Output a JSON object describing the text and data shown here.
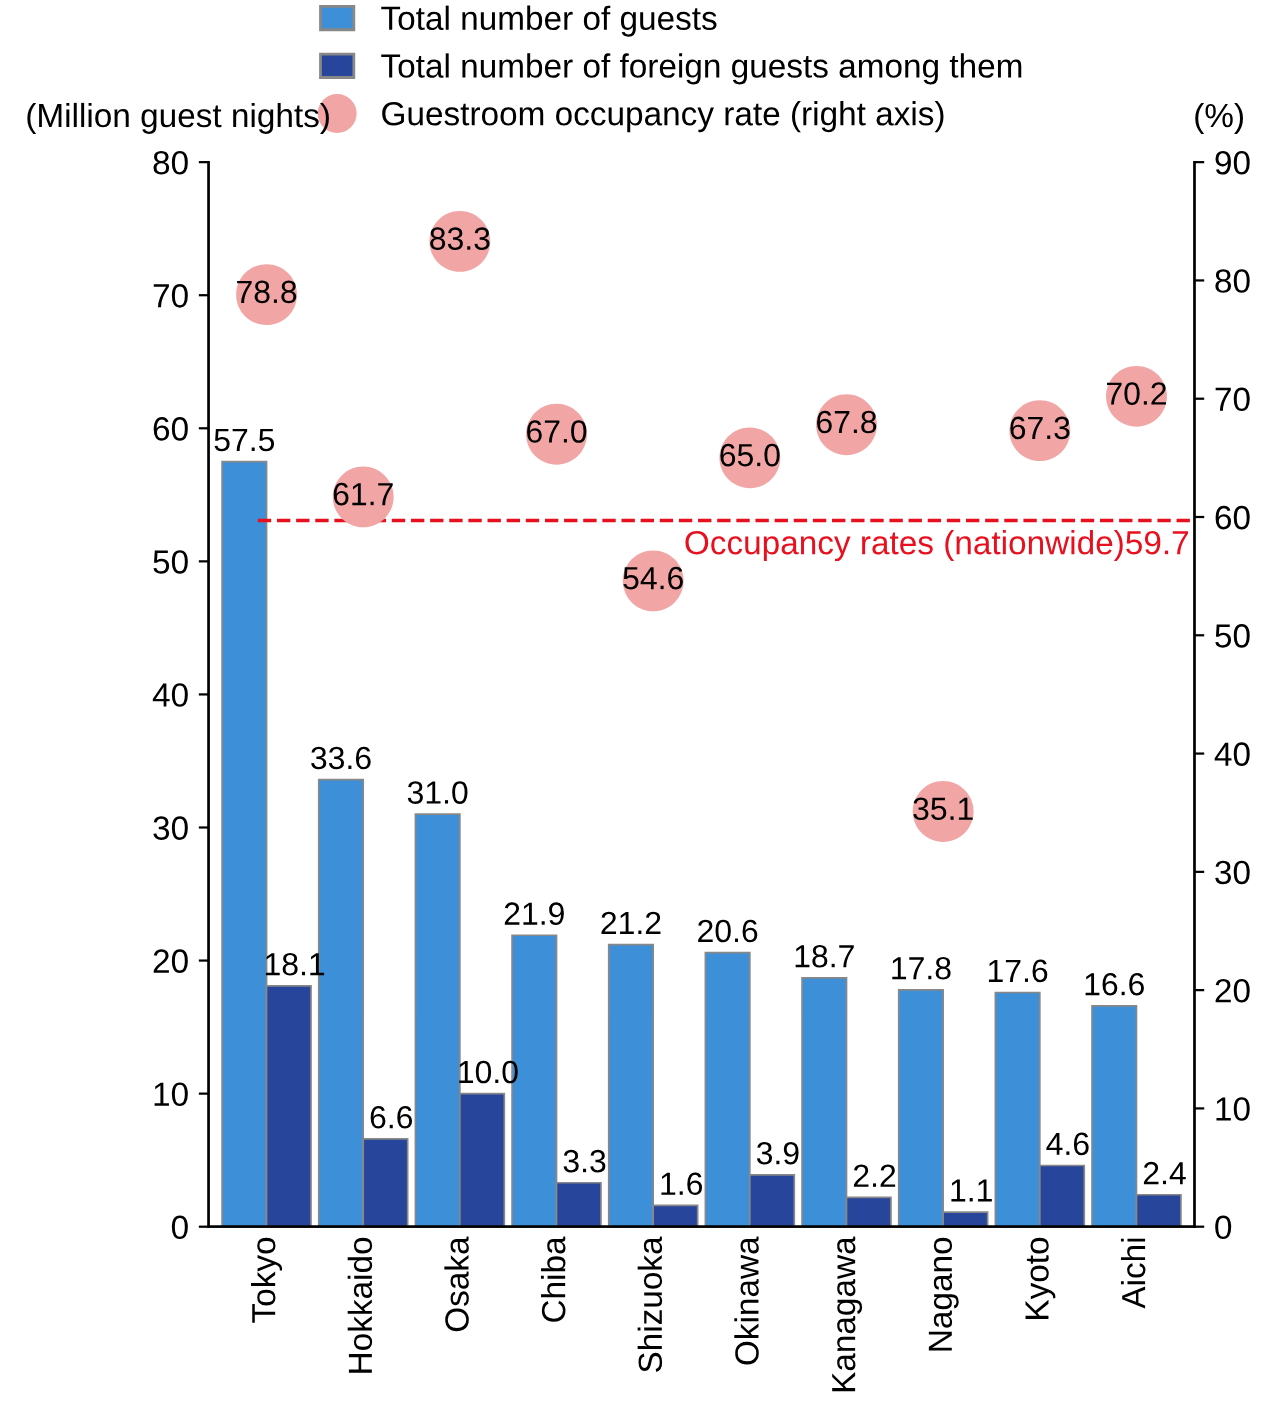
{
  "chart_data": {
    "type": "bar",
    "ylabel": "(Million guest nights)",
    "y2label": "(%)",
    "categories": [
      "Tokyo",
      "Hokkaido",
      "Osaka",
      "Chiba",
      "Shizuoka",
      "Okinawa",
      "Kanagawa",
      "Nagano",
      "Kyoto",
      "Aichi"
    ],
    "series": [
      {
        "name": "Total number of guests",
        "color": "#3d8fd8",
        "values": [
          57.5,
          33.6,
          31.0,
          21.9,
          21.2,
          20.6,
          18.7,
          17.8,
          17.6,
          16.6
        ],
        "value_labels": [
          "57.5",
          "33.6",
          "31.0",
          "21.9",
          "21.2",
          "20.6",
          "18.7",
          "17.8",
          "17.6",
          "16.6"
        ]
      },
      {
        "name": "Total number of foreign guests among them",
        "color": "#27459a",
        "values": [
          18.1,
          6.6,
          10.0,
          3.3,
          1.6,
          3.9,
          2.2,
          1.1,
          4.6,
          2.4
        ],
        "value_labels": [
          "18.1",
          "6.6",
          "10.0",
          "3.3",
          "1.6",
          "3.9",
          "2.2",
          "1.1",
          "4.6",
          "2.4"
        ]
      },
      {
        "name": "Guestroom occupancy rate (right axis)",
        "type": "scatter",
        "axis": "y2",
        "color": "#f2a5a5",
        "marker": "circle",
        "values": [
          78.8,
          61.7,
          83.3,
          67.0,
          54.6,
          65.0,
          67.8,
          35.1,
          67.3,
          70.2
        ],
        "value_labels": [
          "78.8",
          "61.7",
          "83.3",
          "67.0",
          "54.6",
          "65.0",
          "67.8",
          "35.1",
          "67.3",
          "70.2"
        ]
      }
    ],
    "ylim": [
      0,
      80
    ],
    "yticks": [
      0,
      10,
      20,
      30,
      40,
      50,
      60,
      70,
      80
    ],
    "y2lim": [
      0,
      90
    ],
    "y2ticks": [
      0,
      10,
      20,
      30,
      40,
      50,
      60,
      70,
      80,
      90
    ],
    "ref_lines": [
      {
        "axis": "y2",
        "value": 59.7,
        "label": "Occupancy rates (nationwide)59.7",
        "color": "#e8101e",
        "line_style": "dashed"
      }
    ],
    "grid": false,
    "legend": "top"
  }
}
